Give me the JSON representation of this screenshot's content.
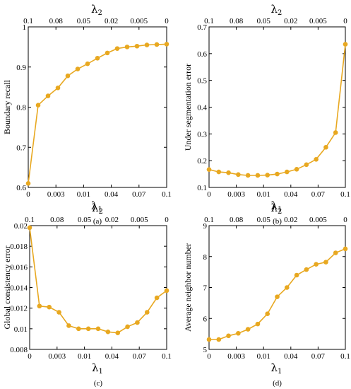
{
  "colors": {
    "series": "#e8a820"
  },
  "axis_names": {
    "x_bottom": "λ",
    "x_bottom_sub": "1",
    "x_top": "λ",
    "x_top_sub": "2"
  },
  "chart_data": [
    {
      "type": "line",
      "ylabel": "Boundary recall",
      "caption": "(a)",
      "ylim": [
        0.6,
        1
      ],
      "yticks": [
        "0.6",
        "0.7",
        "0.8",
        "0.9",
        "1"
      ],
      "xticks_bottom": [
        "0",
        "0.003",
        "0.01",
        "0.04",
        "0.07",
        "0.1"
      ],
      "xticks_top": [
        "0.1",
        "0.08",
        "0.05",
        "0.02",
        "0.005",
        "0"
      ],
      "values": [
        0.61,
        0.805,
        0.828,
        0.848,
        0.878,
        0.895,
        0.908,
        0.922,
        0.935,
        0.946,
        0.95,
        0.952,
        0.955,
        0.956,
        0.957
      ]
    },
    {
      "type": "line",
      "ylabel": "Under segmentation error",
      "caption": "(b)",
      "ylim": [
        0.1,
        0.7
      ],
      "yticks": [
        "0.1",
        "0.2",
        "0.3",
        "0.4",
        "0.5",
        "0.6",
        "0.7"
      ],
      "xticks_bottom": [
        "0",
        "0.003",
        "0.01",
        "0.04",
        "0.07",
        "0.1"
      ],
      "xticks_top": [
        "0.1",
        "0.08",
        "0.05",
        "0.02",
        "0.005",
        "0"
      ],
      "values": [
        0.167,
        0.158,
        0.155,
        0.148,
        0.145,
        0.145,
        0.146,
        0.15,
        0.158,
        0.168,
        0.185,
        0.205,
        0.25,
        0.305,
        0.635
      ]
    },
    {
      "type": "line",
      "ylabel": "Global consistency error",
      "caption": "(c)",
      "ylim": [
        0.008,
        0.02
      ],
      "yticks": [
        "0.008",
        "0.01",
        "0.012",
        "0.014",
        "0.016",
        "0.018",
        "0.02"
      ],
      "xticks_bottom": [
        "0",
        "0.003",
        "0.01",
        "0.04",
        "0.07",
        "0.1"
      ],
      "xticks_top": [
        "0.1",
        "0.08",
        "0.05",
        "0.02",
        "0.005",
        "0"
      ],
      "values": [
        0.0198,
        0.0122,
        0.0121,
        0.0116,
        0.0103,
        0.01,
        0.01,
        0.01,
        0.0097,
        0.0096,
        0.0102,
        0.0106,
        0.0116,
        0.013,
        0.0137
      ]
    },
    {
      "type": "line",
      "ylabel": "Average neighbor number",
      "caption": "(d)",
      "ylim": [
        5,
        9
      ],
      "yticks": [
        "5",
        "6",
        "7",
        "8",
        "9"
      ],
      "xticks_bottom": [
        "0",
        "0.003",
        "0.01",
        "0.04",
        "0.07",
        "0.1"
      ],
      "xticks_top": [
        "0.1",
        "0.08",
        "0.05",
        "0.02",
        "0.005",
        "0"
      ],
      "values": [
        5.32,
        5.32,
        5.44,
        5.52,
        5.65,
        5.82,
        6.15,
        6.7,
        7.0,
        7.4,
        7.58,
        7.75,
        7.82,
        8.12,
        8.25
      ]
    }
  ]
}
